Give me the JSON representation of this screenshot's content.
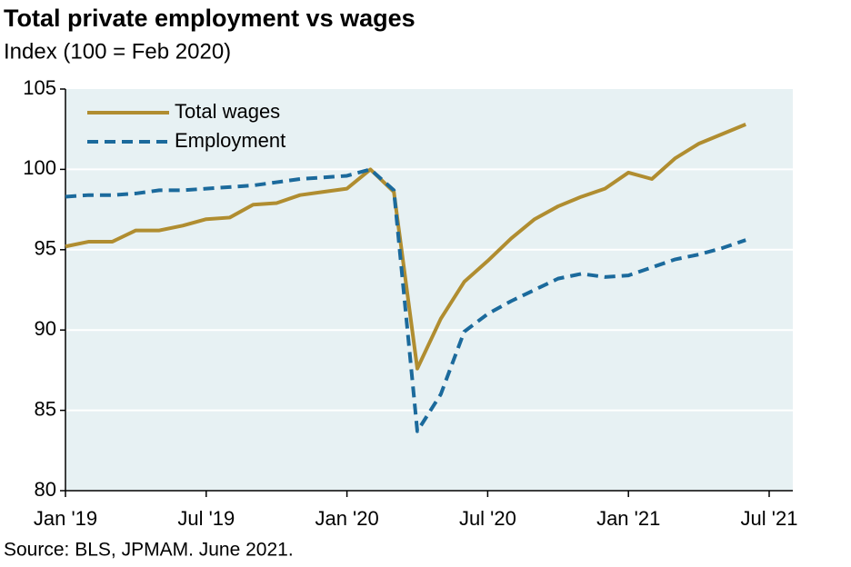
{
  "chart_data": {
    "type": "line",
    "title": "Total private employment vs wages",
    "subtitle": "Index (100 = Feb 2020)",
    "source": "Source: BLS, JPMAM. June 2021.",
    "categories": [
      "Jan '19",
      null,
      null,
      null,
      null,
      null,
      "Jul '19",
      null,
      null,
      null,
      null,
      null,
      "Jan '20",
      null,
      null,
      null,
      null,
      null,
      "Jul '20",
      null,
      null,
      null,
      null,
      null,
      "Jan '21",
      null,
      null,
      null,
      null,
      null,
      "Jul '21"
    ],
    "series": [
      {
        "name": "Total wages",
        "color": "#b08d30",
        "style": "solid",
        "values": [
          95.2,
          95.5,
          95.5,
          96.2,
          96.2,
          96.5,
          96.9,
          97.0,
          97.8,
          97.9,
          98.4,
          98.6,
          98.8,
          100.0,
          98.6,
          87.6,
          90.7,
          93.0,
          94.3,
          95.7,
          96.9,
          97.7,
          98.3,
          98.8,
          99.8,
          99.4,
          100.7,
          101.6,
          102.2,
          102.8,
          null
        ]
      },
      {
        "name": "Employment",
        "color": "#1b6a9c",
        "style": "dashed",
        "values": [
          98.3,
          98.4,
          98.4,
          98.5,
          98.7,
          98.7,
          98.8,
          98.9,
          99.0,
          99.2,
          99.4,
          99.5,
          99.6,
          100.0,
          98.7,
          83.7,
          86.0,
          89.9,
          91.0,
          91.8,
          92.5,
          93.2,
          93.5,
          93.3,
          93.4,
          93.9,
          94.4,
          94.7,
          95.1,
          95.6,
          null
        ]
      }
    ],
    "ylim": [
      80,
      105
    ],
    "yticks": [
      80,
      85,
      90,
      95,
      100,
      105
    ],
    "grid": true,
    "legend": "upper left"
  }
}
